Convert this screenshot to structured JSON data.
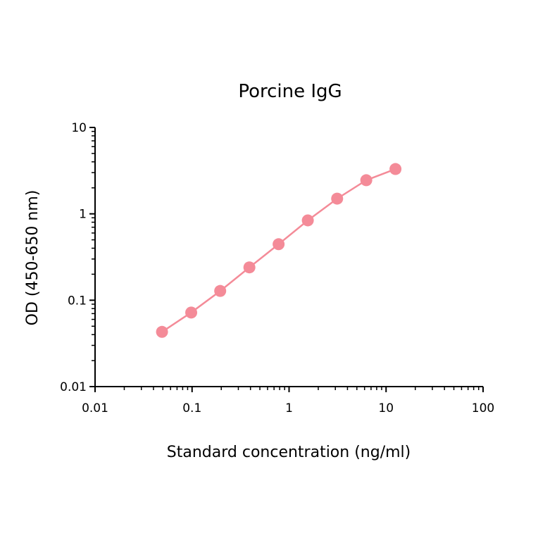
{
  "chart_data": {
    "type": "line",
    "title": "Porcine IgG",
    "xlabel": "Standard concentration (ng/ml)",
    "ylabel": "OD (450-650 nm)",
    "x_scale": "log",
    "y_scale": "log",
    "xlim": [
      0.01,
      100
    ],
    "ylim": [
      0.01,
      10
    ],
    "x_ticks": [
      "0.01",
      "0.1",
      "1",
      "10",
      "100"
    ],
    "y_ticks": [
      "0.01",
      "0.1",
      "1",
      "10"
    ],
    "grid": false,
    "legend": "none",
    "colors": {
      "series": "#f48b98",
      "axis": "#000000"
    },
    "series": [
      {
        "x": [
          0.049,
          0.098,
          0.195,
          0.39,
          0.78,
          1.56,
          3.13,
          6.25,
          12.5
        ],
        "y": [
          0.043,
          0.072,
          0.128,
          0.24,
          0.445,
          0.84,
          1.5,
          2.45,
          3.3
        ]
      }
    ]
  }
}
